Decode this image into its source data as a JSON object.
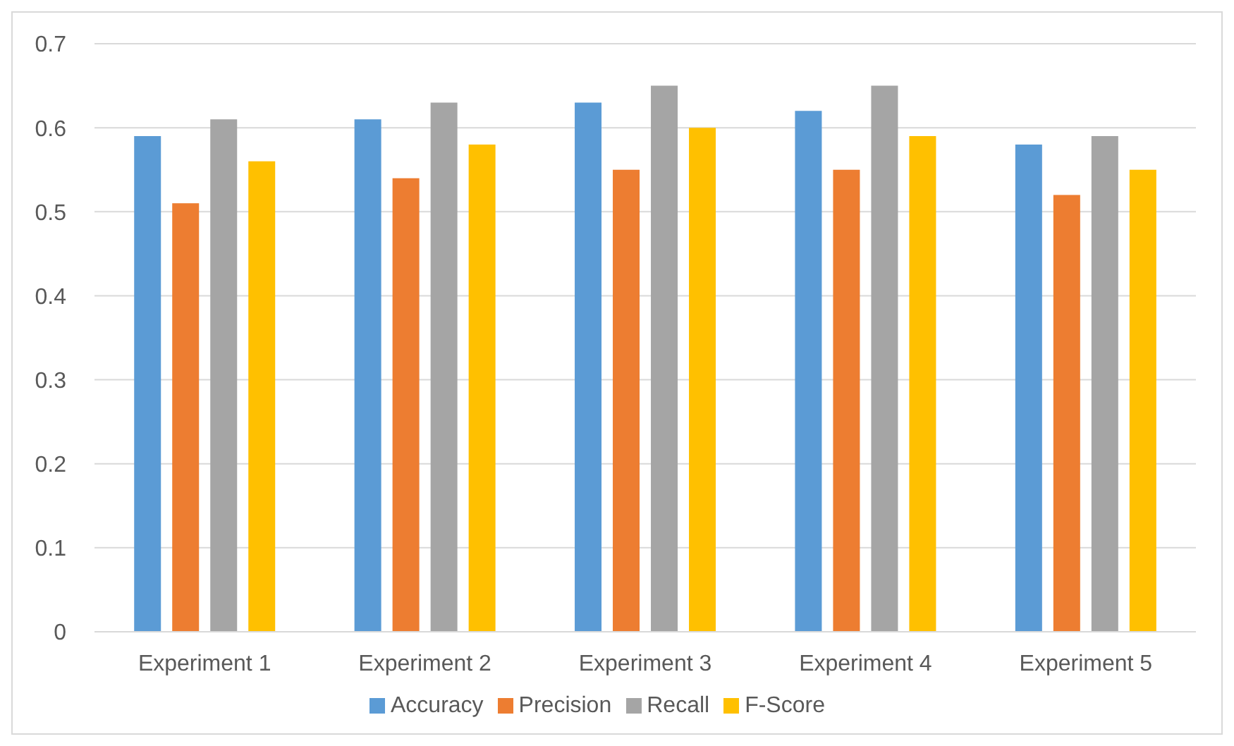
{
  "chart_data": {
    "type": "bar",
    "categories": [
      "Experiment 1",
      "Experiment 2",
      "Experiment 3",
      "Experiment 4",
      "Experiment 5"
    ],
    "series": [
      {
        "name": "Accuracy",
        "color": "#5b9bd5",
        "values": [
          0.59,
          0.61,
          0.63,
          0.62,
          0.58
        ]
      },
      {
        "name": "Precision",
        "color": "#ed7d31",
        "values": [
          0.51,
          0.54,
          0.55,
          0.55,
          0.52
        ]
      },
      {
        "name": "Recall",
        "color": "#a5a5a5",
        "values": [
          0.61,
          0.63,
          0.65,
          0.65,
          0.59
        ]
      },
      {
        "name": "F-Score",
        "color": "#ffc000",
        "values": [
          0.56,
          0.58,
          0.6,
          0.59,
          0.55
        ]
      }
    ],
    "ylim": [
      0,
      0.7
    ],
    "yticks": [
      0,
      0.1,
      0.2,
      0.3,
      0.4,
      0.5,
      0.6,
      0.7
    ],
    "grid": "y",
    "legend": "bottom"
  }
}
